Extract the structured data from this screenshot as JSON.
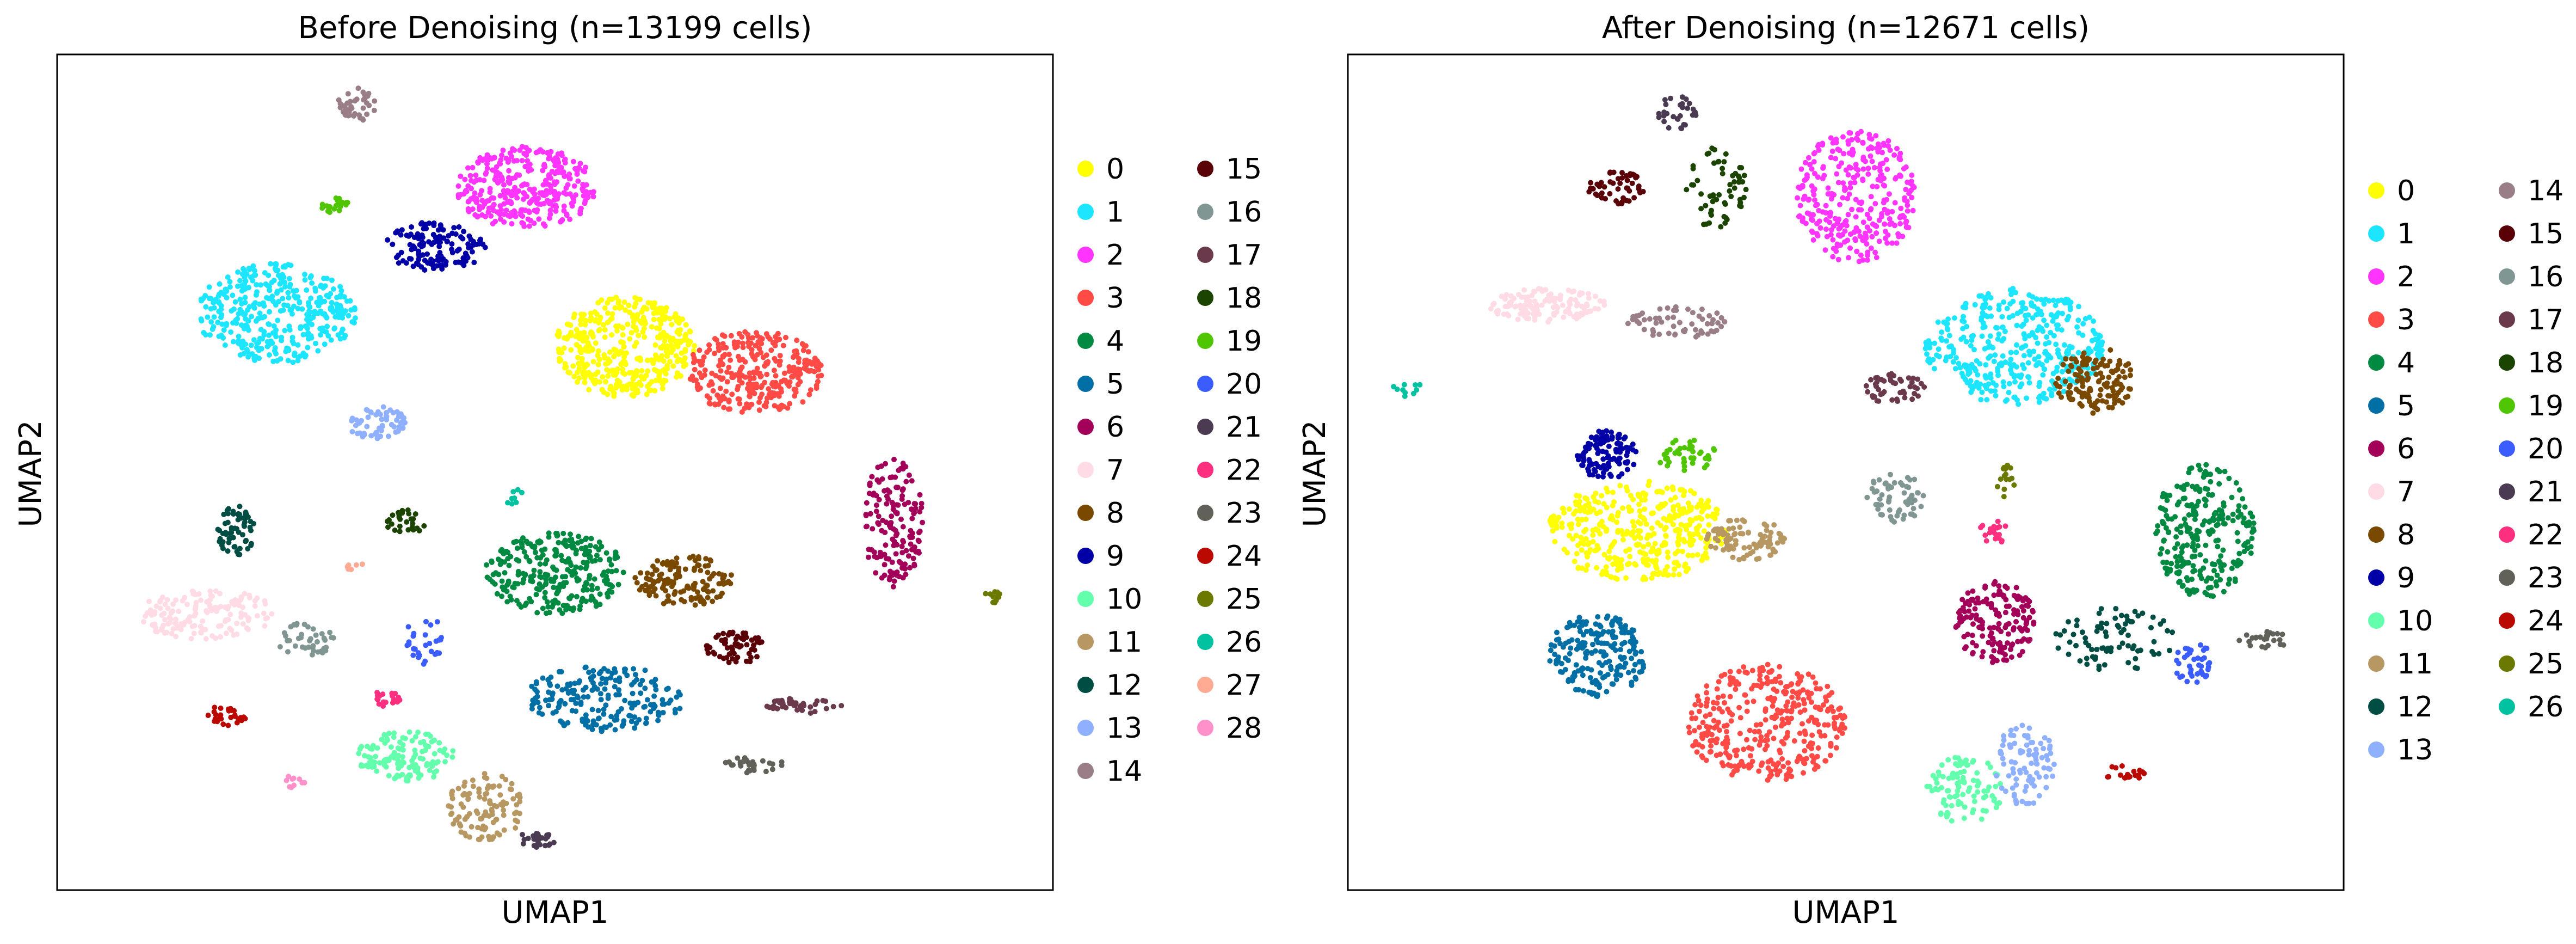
{
  "chart_data": [
    {
      "type": "scatter",
      "title": "Before Denoising (n=13199 cells)",
      "xlabel": "UMAP1",
      "ylabel": "UMAP2",
      "grid": false,
      "legend_position": "right, two columns",
      "xlim": [
        0,
        100
      ],
      "ylim": [
        0,
        100
      ],
      "legend": [
        "0",
        "1",
        "2",
        "3",
        "4",
        "5",
        "6",
        "7",
        "8",
        "9",
        "10",
        "11",
        "12",
        "13",
        "14",
        "15",
        "16",
        "17",
        "18",
        "19",
        "20",
        "21",
        "22",
        "23",
        "24",
        "25",
        "26",
        "27",
        "28"
      ],
      "colors": [
        "#ffff00",
        "#1ce6ff",
        "#ff34ff",
        "#ff4a46",
        "#008941",
        "#006fa6",
        "#a30059",
        "#ffdbe5",
        "#7a4900",
        "#0000a6",
        "#63ffac",
        "#b79762",
        "#004d43",
        "#8fb0ff",
        "#997d87",
        "#5a0007",
        "#809693",
        "#6a3a4c",
        "#1b4400",
        "#4fc601",
        "#3b5dff",
        "#4a3b53",
        "#ff2f80",
        "#61615a",
        "#ba0900",
        "#6b7900",
        "#00c2a0",
        "#ffaa92",
        "#ff90c9"
      ],
      "clusters": [
        {
          "label": "0",
          "cx": 57,
          "cy": 65,
          "rx": 7,
          "ry": 6,
          "n": 420
        },
        {
          "label": "1",
          "cx": 22,
          "cy": 69,
          "rx": 8,
          "ry": 6,
          "n": 380
        },
        {
          "label": "2",
          "cx": 47,
          "cy": 84,
          "rx": 7,
          "ry": 5,
          "n": 340
        },
        {
          "label": "3",
          "cx": 70,
          "cy": 62,
          "rx": 7,
          "ry": 5,
          "n": 300
        },
        {
          "label": "4",
          "cx": 50,
          "cy": 38,
          "rx": 7,
          "ry": 5,
          "n": 280
        },
        {
          "label": "5",
          "cx": 55,
          "cy": 23,
          "rx": 8,
          "ry": 4,
          "n": 200
        },
        {
          "label": "6",
          "cx": 84,
          "cy": 44,
          "rx": 3,
          "ry": 8,
          "n": 160
        },
        {
          "label": "7",
          "cx": 15,
          "cy": 33,
          "rx": 7,
          "ry": 3,
          "n": 150
        },
        {
          "label": "8",
          "cx": 63,
          "cy": 37,
          "rx": 5,
          "ry": 3,
          "n": 140
        },
        {
          "label": "9",
          "cx": 38,
          "cy": 77,
          "rx": 5,
          "ry": 3,
          "n": 140
        },
        {
          "label": "10",
          "cx": 35,
          "cy": 16,
          "rx": 5,
          "ry": 3,
          "n": 130
        },
        {
          "label": "11",
          "cx": 43,
          "cy": 10,
          "rx": 4,
          "ry": 4,
          "n": 110
        },
        {
          "label": "12",
          "cx": 18,
          "cy": 43,
          "rx": 2,
          "ry": 3,
          "n": 60
        },
        {
          "label": "13",
          "cx": 32,
          "cy": 56,
          "rx": 3,
          "ry": 2,
          "n": 60
        },
        {
          "label": "14",
          "cx": 30,
          "cy": 94,
          "rx": 2,
          "ry": 2,
          "n": 40
        },
        {
          "label": "15",
          "cx": 68,
          "cy": 29,
          "rx": 3,
          "ry": 2,
          "n": 60
        },
        {
          "label": "16",
          "cx": 25,
          "cy": 30,
          "rx": 3,
          "ry": 2,
          "n": 40
        },
        {
          "label": "17",
          "cx": 75,
          "cy": 22,
          "rx": 4,
          "ry": 1,
          "n": 40
        },
        {
          "label": "18",
          "cx": 35,
          "cy": 44,
          "rx": 2,
          "ry": 1.5,
          "n": 30
        },
        {
          "label": "19",
          "cx": 28,
          "cy": 82,
          "rx": 1.5,
          "ry": 1,
          "n": 20
        },
        {
          "label": "20",
          "cx": 37,
          "cy": 30,
          "rx": 2,
          "ry": 3,
          "n": 30
        },
        {
          "label": "21",
          "cx": 48,
          "cy": 6,
          "rx": 2,
          "ry": 1,
          "n": 25
        },
        {
          "label": "22",
          "cx": 33,
          "cy": 23,
          "rx": 1.5,
          "ry": 1,
          "n": 20
        },
        {
          "label": "23",
          "cx": 70,
          "cy": 15,
          "rx": 3,
          "ry": 1,
          "n": 30
        },
        {
          "label": "24",
          "cx": 17,
          "cy": 21,
          "rx": 2,
          "ry": 1.5,
          "n": 30
        },
        {
          "label": "25",
          "cx": 94,
          "cy": 35,
          "rx": 1,
          "ry": 1,
          "n": 12
        },
        {
          "label": "26",
          "cx": 46,
          "cy": 47,
          "rx": 1,
          "ry": 1,
          "n": 8
        },
        {
          "label": "27",
          "cx": 30,
          "cy": 39,
          "rx": 1,
          "ry": 1,
          "n": 6
        },
        {
          "label": "28",
          "cx": 24,
          "cy": 13,
          "rx": 1,
          "ry": 1,
          "n": 10
        }
      ]
    },
    {
      "type": "scatter",
      "title": "After Denoising (n=12671 cells)",
      "xlabel": "UMAP1",
      "ylabel": "UMAP2",
      "grid": false,
      "legend_position": "right, two columns",
      "xlim": [
        0,
        100
      ],
      "ylim": [
        0,
        100
      ],
      "legend": [
        "0",
        "1",
        "2",
        "3",
        "4",
        "5",
        "6",
        "7",
        "8",
        "9",
        "10",
        "11",
        "12",
        "13",
        "14",
        "15",
        "16",
        "17",
        "18",
        "19",
        "20",
        "21",
        "22",
        "23",
        "24",
        "25",
        "26"
      ],
      "colors": [
        "#ffff00",
        "#1ce6ff",
        "#ff34ff",
        "#ff4a46",
        "#008941",
        "#006fa6",
        "#a30059",
        "#ffdbe5",
        "#7a4900",
        "#0000a6",
        "#63ffac",
        "#b79762",
        "#004d43",
        "#8fb0ff",
        "#997d87",
        "#5a0007",
        "#809693",
        "#6a3a4c",
        "#1b4400",
        "#4fc601",
        "#3b5dff",
        "#4a3b53",
        "#ff2f80",
        "#61615a",
        "#ba0900",
        "#6b7900",
        "#00c2a0"
      ],
      "clusters": [
        {
          "label": "0",
          "cx": 29,
          "cy": 43,
          "rx": 9,
          "ry": 6,
          "n": 400
        },
        {
          "label": "1",
          "cx": 67,
          "cy": 65,
          "rx": 9,
          "ry": 7,
          "n": 400
        },
        {
          "label": "2",
          "cx": 51,
          "cy": 83,
          "rx": 6,
          "ry": 8,
          "n": 320
        },
        {
          "label": "3",
          "cx": 42,
          "cy": 20,
          "rx": 8,
          "ry": 7,
          "n": 360
        },
        {
          "label": "4",
          "cx": 86,
          "cy": 43,
          "rx": 5,
          "ry": 8,
          "n": 260
        },
        {
          "label": "5",
          "cx": 25,
          "cy": 28,
          "rx": 5,
          "ry": 5,
          "n": 200
        },
        {
          "label": "6",
          "cx": 65,
          "cy": 32,
          "rx": 4,
          "ry": 5,
          "n": 160
        },
        {
          "label": "7",
          "cx": 20,
          "cy": 70,
          "rx": 6,
          "ry": 2,
          "n": 130
        },
        {
          "label": "8",
          "cx": 75,
          "cy": 61,
          "rx": 4,
          "ry": 4,
          "n": 130
        },
        {
          "label": "9",
          "cx": 26,
          "cy": 52,
          "rx": 3,
          "ry": 3,
          "n": 110
        },
        {
          "label": "10",
          "cx": 62,
          "cy": 12,
          "rx": 4,
          "ry": 4,
          "n": 100
        },
        {
          "label": "11",
          "cx": 40,
          "cy": 42,
          "rx": 4,
          "ry": 2.5,
          "n": 90
        },
        {
          "label": "12",
          "cx": 77,
          "cy": 30,
          "rx": 6,
          "ry": 4,
          "n": 80
        },
        {
          "label": "13",
          "cx": 68,
          "cy": 15,
          "rx": 3,
          "ry": 5,
          "n": 90
        },
        {
          "label": "14",
          "cx": 33,
          "cy": 68,
          "rx": 5,
          "ry": 2,
          "n": 60
        },
        {
          "label": "15",
          "cx": 27,
          "cy": 84,
          "rx": 3,
          "ry": 2,
          "n": 50
        },
        {
          "label": "16",
          "cx": 55,
          "cy": 47,
          "rx": 3,
          "ry": 3,
          "n": 60
        },
        {
          "label": "17",
          "cx": 55,
          "cy": 60,
          "rx": 3,
          "ry": 2,
          "n": 50
        },
        {
          "label": "18",
          "cx": 37,
          "cy": 84,
          "rx": 3,
          "ry": 5,
          "n": 60
        },
        {
          "label": "19",
          "cx": 34,
          "cy": 52,
          "rx": 3,
          "ry": 2,
          "n": 40
        },
        {
          "label": "20",
          "cx": 85,
          "cy": 27,
          "rx": 2,
          "ry": 2.5,
          "n": 40
        },
        {
          "label": "21",
          "cx": 33,
          "cy": 93,
          "rx": 2,
          "ry": 2,
          "n": 30
        },
        {
          "label": "22",
          "cx": 65,
          "cy": 43,
          "rx": 1.5,
          "ry": 1.5,
          "n": 20
        },
        {
          "label": "23",
          "cx": 92,
          "cy": 30,
          "rx": 3,
          "ry": 1,
          "n": 25
        },
        {
          "label": "24",
          "cx": 78,
          "cy": 14,
          "rx": 2,
          "ry": 1,
          "n": 20
        },
        {
          "label": "25",
          "cx": 66,
          "cy": 49,
          "rx": 1,
          "ry": 2,
          "n": 15
        },
        {
          "label": "26",
          "cx": 6,
          "cy": 60,
          "rx": 1.5,
          "ry": 1,
          "n": 10
        }
      ]
    }
  ]
}
